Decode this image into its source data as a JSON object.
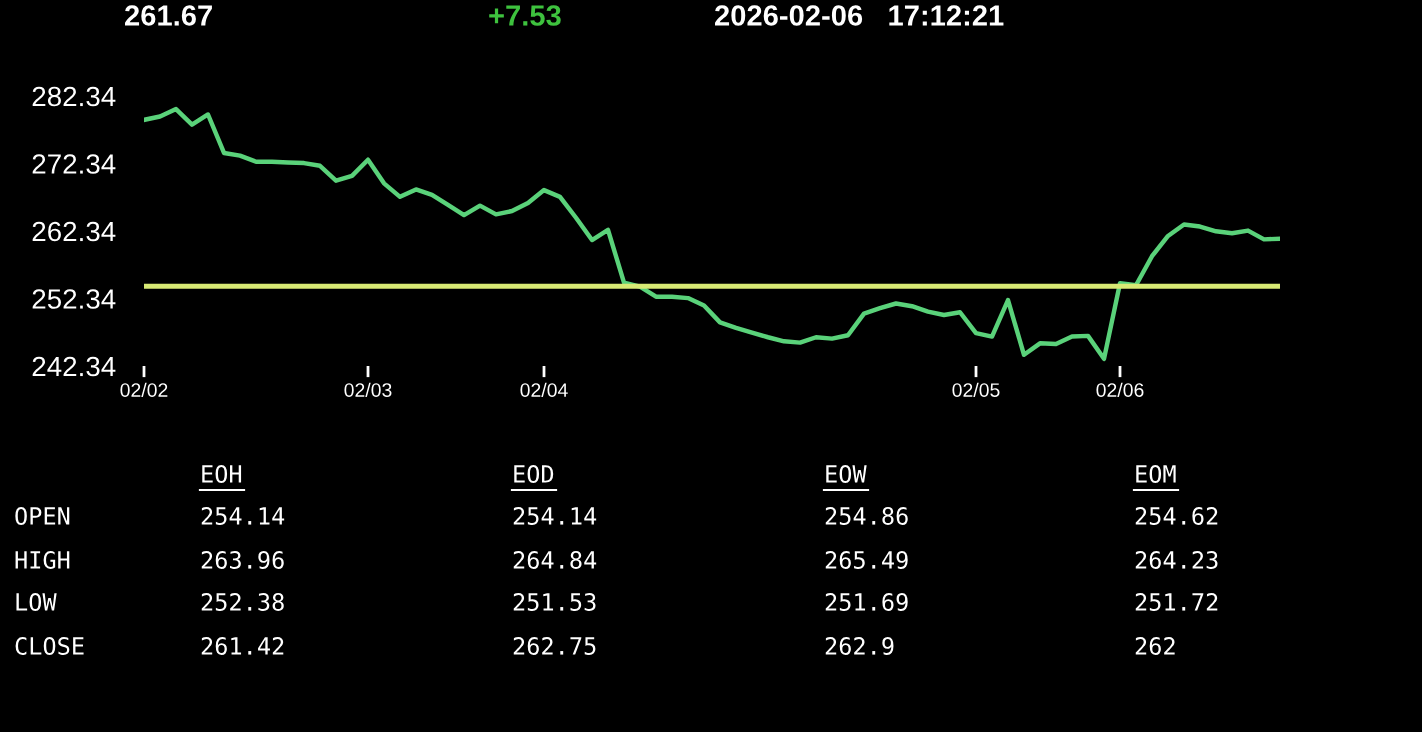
{
  "chart_data": [
    {
      "type": "line",
      "annotations": [
        "261.67",
        "+7.53",
        "2026-02-06   17:12:21"
      ],
      "categories": [
        "02/02",
        null,
        null,
        null,
        null,
        null,
        null,
        null,
        null,
        null,
        null,
        null,
        null,
        null,
        "02/03",
        null,
        null,
        null,
        null,
        null,
        null,
        null,
        null,
        null,
        null,
        "02/04",
        null,
        null,
        null,
        null,
        null,
        null,
        null,
        null,
        null,
        null,
        null,
        null,
        null,
        null,
        null,
        null,
        null,
        null,
        null,
        null,
        null,
        null,
        null,
        null,
        null,
        null,
        "02/05",
        null,
        null,
        null,
        null,
        null,
        null,
        null,
        null,
        "02/06",
        null,
        null,
        null,
        null,
        null,
        null,
        null,
        null,
        null,
        null
      ],
      "series": [
        {
          "color": "#5ad27a",
          "values": [
            278.8,
            279.3,
            280.4,
            278.1,
            279.6,
            273.9,
            273.5,
            272.6,
            272.6,
            272.5,
            272.4,
            272.0,
            269.8,
            270.5,
            272.9,
            269.4,
            267.4,
            268.5,
            267.7,
            266.2,
            264.7,
            266.1,
            264.8,
            265.3,
            266.5,
            268.4,
            267.4,
            264.3,
            261.0,
            262.5,
            254.7,
            254.1,
            252.6,
            252.6,
            252.4,
            251.3,
            248.8,
            248.0,
            247.3,
            246.6,
            246.0,
            245.8,
            246.6,
            246.4,
            246.9,
            250.1,
            250.9,
            251.6,
            251.2,
            250.4,
            249.9,
            250.3,
            247.2,
            246.7,
            252.1,
            244.0,
            245.7,
            245.6,
            246.7,
            246.8,
            243.4,
            254.6,
            254.3,
            258.6,
            261.6,
            263.3,
            263.0,
            262.3,
            262.0,
            262.4,
            261.1,
            261.2
          ]
        }
      ],
      "ylim": [
        242.34,
        282.34
      ],
      "yticks": [
        242.34,
        252.34,
        262.34,
        272.34,
        282.34
      ],
      "ref_lines": [
        {
          "axis": "y",
          "value": 254.14,
          "color": "#d8ea74"
        }
      ],
      "grid": false,
      "legend": false,
      "marker": "none",
      "line_style": "solid"
    },
    {
      "type": "other",
      "categories": [
        "EOH",
        "EOD",
        "EOW",
        "EOM"
      ],
      "y_categories": [
        "OPEN",
        "HIGH",
        "LOW",
        "CLOSE"
      ],
      "cells": [
        [
          "254.14",
          "254.14",
          "254.86",
          "254.62"
        ],
        [
          "263.96",
          "264.84",
          "265.49",
          "264.23"
        ],
        [
          "252.38",
          "251.53",
          "251.69",
          "251.72"
        ],
        [
          "261.42",
          "262.75",
          "262.9",
          "262"
        ]
      ]
    }
  ]
}
